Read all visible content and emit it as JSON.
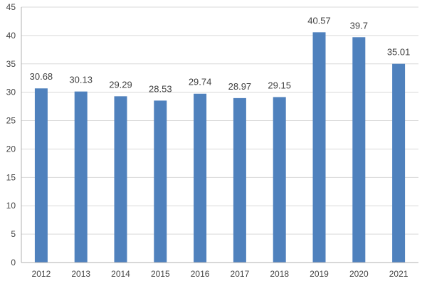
{
  "chart_data": {
    "type": "bar",
    "categories": [
      "2012",
      "2013",
      "2014",
      "2015",
      "2016",
      "2017",
      "2018",
      "2019",
      "2020",
      "2021"
    ],
    "values": [
      30.68,
      30.13,
      29.29,
      28.53,
      29.74,
      28.97,
      29.15,
      40.57,
      39.7,
      35.01
    ],
    "data_labels": [
      "30.68",
      "30.13",
      "29.29",
      "28.53",
      "29.74",
      "28.97",
      "29.15",
      "40.57",
      "39.7",
      "35.01"
    ],
    "y_ticks": [
      "0",
      "5",
      "10",
      "15",
      "20",
      "25",
      "30",
      "35",
      "40",
      "45"
    ],
    "ylim": [
      0,
      45
    ],
    "title": "",
    "xlabel": "",
    "ylabel": "",
    "grid": true,
    "bar_color": "#4f81bd"
  }
}
